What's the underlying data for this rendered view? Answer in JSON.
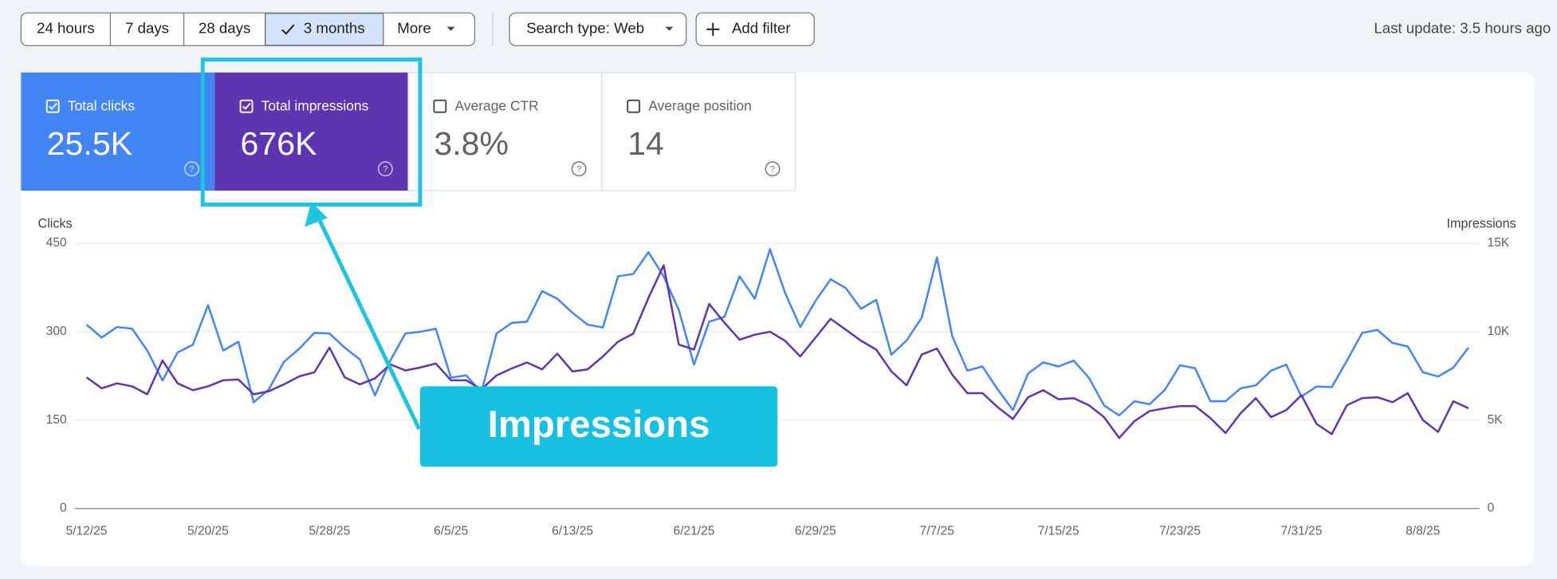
{
  "toolbar": {
    "ranges": [
      "24 hours",
      "7 days",
      "28 days",
      "3 months",
      "More"
    ],
    "selected": 3,
    "filters": [
      "Search type: Web",
      "Add filter"
    ],
    "last_update": "Last update: 3.5 hours ago"
  },
  "metrics": [
    {
      "label": "Total clicks",
      "value": "25.5K",
      "checked": true,
      "color": "#4285f4"
    },
    {
      "label": "Total impressions",
      "value": "676K",
      "checked": true,
      "color": "#5e35b1"
    },
    {
      "label": "Average CTR",
      "value": "3.8%",
      "checked": false
    },
    {
      "label": "Average position",
      "value": "14",
      "checked": false
    }
  ],
  "annotation": "Impressions",
  "chart_data": {
    "type": "line",
    "ylabel": "Clicks",
    "y2label": "Impressions",
    "categories": [
      "5/12/25",
      null,
      null,
      null,
      null,
      null,
      null,
      null,
      "5/20/25",
      null,
      null,
      null,
      null,
      null,
      null,
      null,
      "5/28/25",
      null,
      null,
      null,
      null,
      null,
      null,
      null,
      "6/5/25",
      null,
      null,
      null,
      null,
      null,
      null,
      null,
      "6/13/25",
      null,
      null,
      null,
      null,
      null,
      null,
      null,
      "6/21/25",
      null,
      null,
      null,
      null,
      null,
      null,
      null,
      "6/29/25",
      null,
      null,
      null,
      null,
      null,
      null,
      null,
      "7/7/25",
      null,
      null,
      null,
      null,
      null,
      null,
      null,
      "7/15/25",
      null,
      null,
      null,
      null,
      null,
      null,
      null,
      "7/23/25",
      null,
      null,
      null,
      null,
      null,
      null,
      null,
      "7/31/25",
      null,
      null,
      null,
      null,
      null,
      null,
      null,
      "8/8/25",
      null,
      null,
      null
    ],
    "series": [
      {
        "name": "Clicks",
        "color": "#4285f4",
        "values": [
          312,
          290,
          308,
          305,
          268,
          217,
          265,
          278,
          345,
          268,
          283,
          180,
          202,
          249,
          271,
          298,
          297,
          273,
          253,
          192,
          251,
          297,
          300,
          305,
          222,
          226,
          197,
          297,
          315,
          317,
          369,
          356,
          332,
          312,
          307,
          394,
          398,
          435,
          394,
          337,
          244,
          317,
          325,
          394,
          356,
          440,
          366,
          308,
          352,
          389,
          374,
          339,
          354,
          261,
          285,
          324,
          426,
          293,
          234,
          241,
          202,
          167,
          229,
          248,
          241,
          251,
          222,
          175,
          158,
          182,
          177,
          201,
          243,
          238,
          182,
          182,
          204,
          209,
          234,
          244,
          190,
          207,
          206,
          251,
          298,
          303,
          281,
          275,
          231,
          224,
          239,
          273
        ]
      },
      {
        "name": "Impressions",
        "color": "#5e35b1",
        "axis": "y2",
        "values": [
          7420,
          6800,
          7080,
          6910,
          6460,
          8370,
          7080,
          6690,
          6910,
          7250,
          7300,
          6460,
          6630,
          7020,
          7470,
          7700,
          9100,
          7420,
          7020,
          7360,
          8150,
          7810,
          7980,
          8200,
          7250,
          7250,
          6740,
          7530,
          7920,
          8260,
          7870,
          8760,
          7750,
          7870,
          8600,
          9440,
          9890,
          11910,
          13760,
          9270,
          8990,
          11570,
          10510,
          9550,
          9830,
          10000,
          9490,
          8600,
          9660,
          10730,
          10110,
          9490,
          8990,
          7750,
          6970,
          8710,
          9050,
          7580,
          6520,
          6520,
          5730,
          5060,
          6290,
          6690,
          6180,
          6240,
          5840,
          5170,
          3990,
          4940,
          5510,
          5670,
          5790,
          5790,
          5110,
          4270,
          5390,
          6240,
          5170,
          5560,
          6410,
          4780,
          4210,
          5840,
          6240,
          6290,
          6010,
          6520,
          5000,
          4330,
          6070,
          5670
        ]
      }
    ],
    "ylim": [
      0,
      450
    ],
    "yticks": [
      0,
      150,
      300,
      450
    ],
    "y2lim": [
      0,
      15000
    ],
    "y2ticks": [
      0,
      {
        "value": 5000,
        "label": "5K"
      },
      {
        "value": 10000,
        "label": "10K"
      },
      {
        "value": 15000,
        "label": "15K"
      }
    ],
    "grid": true
  }
}
